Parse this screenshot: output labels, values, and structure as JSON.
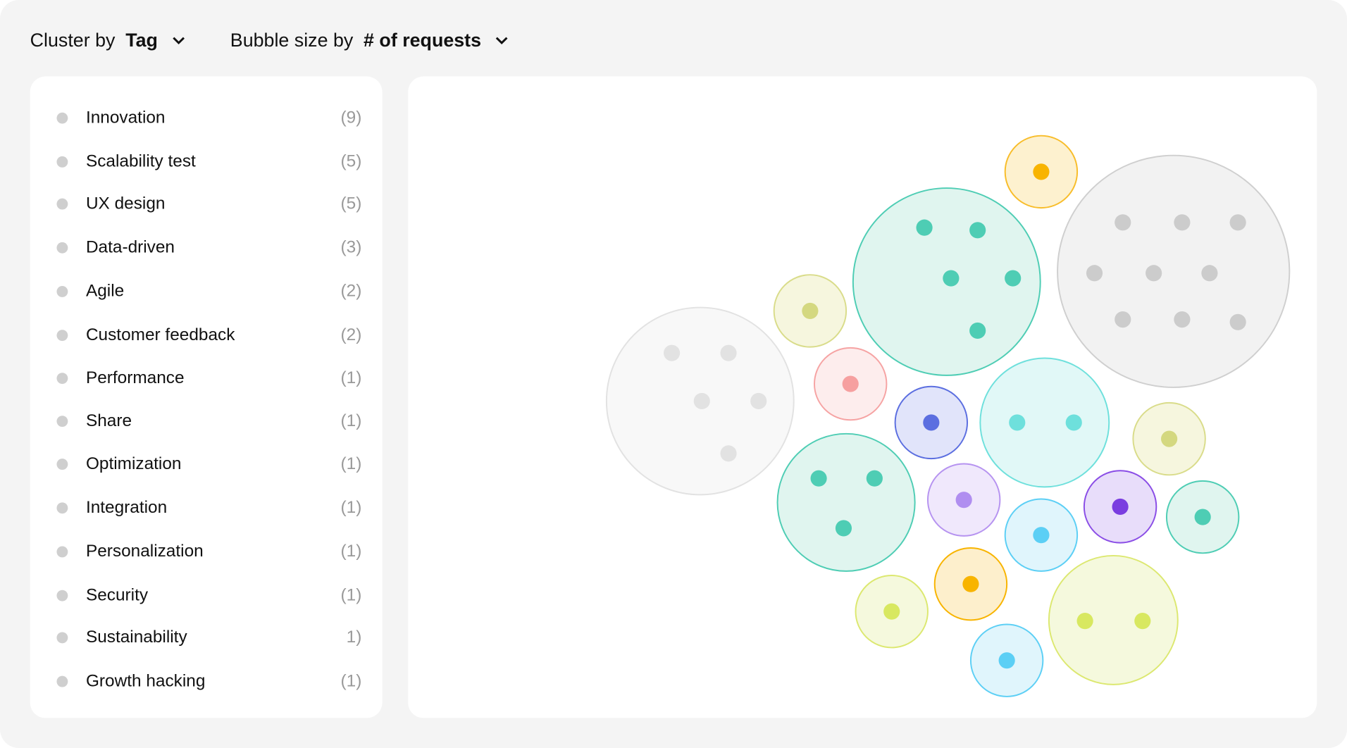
{
  "controls": {
    "cluster": {
      "prefix": "Cluster by ",
      "value": "Tag",
      "icon": "chevron-down-icon"
    },
    "bubble_size": {
      "prefix": "Bubble size by ",
      "value": "# of requests",
      "icon": "chevron-down-icon"
    }
  },
  "tags": [
    {
      "label": "Innovation",
      "count": "(9)"
    },
    {
      "label": "Scalability test",
      "count": "(5)"
    },
    {
      "label": "UX design",
      "count": "(5)"
    },
    {
      "label": "Data-driven",
      "count": "(3)"
    },
    {
      "label": "Agile",
      "count": "(2)"
    },
    {
      "label": "Customer feedback",
      "count": "(2)"
    },
    {
      "label": "Performance",
      "count": "(1)"
    },
    {
      "label": "Share",
      "count": "(1)"
    },
    {
      "label": "Optimization",
      "count": "(1)"
    },
    {
      "label": "Integration",
      "count": "(1)"
    },
    {
      "label": "Personalization",
      "count": "(1)"
    },
    {
      "label": "Security",
      "count": "(1)"
    },
    {
      "label": "Sustainability",
      "count": "1)"
    },
    {
      "label": "Growth hacking",
      "count": "(1)"
    }
  ],
  "chart_data": {
    "type": "bubble-cluster",
    "bubbles": [
      {
        "requests": 1,
        "stroke": "#f8bd2a",
        "fill": "#fdf1cf",
        "dot": "#f8b400"
      },
      {
        "requests": 9,
        "stroke": "#cfcfcf",
        "fill": "#f2f2f2",
        "dot": "#cccccc"
      },
      {
        "requests": 5,
        "stroke": "#4ecdb4",
        "fill": "#e0f5ef",
        "dot": "#4ecdb4"
      },
      {
        "requests": 1,
        "stroke": "#d9dc8a",
        "fill": "#f6f6de",
        "dot": "#d4d880"
      },
      {
        "requests": 5,
        "stroke": "#e2e2e2",
        "fill": "#f8f8f8",
        "dot": "#e2e2e2"
      },
      {
        "requests": 1,
        "stroke": "#f6a3a3",
        "fill": "#fdeded",
        "dot": "#f6a0a0"
      },
      {
        "requests": 1,
        "stroke": "#5b6ee0",
        "fill": "#e1e4fa",
        "dot": "#5b6ee0"
      },
      {
        "requests": 2,
        "stroke": "#6ee0dc",
        "fill": "#e1f8f7",
        "dot": "#6ee0dc"
      },
      {
        "requests": 1,
        "stroke": "#d9dc8a",
        "fill": "#f6f6de",
        "dot": "#d4d880"
      },
      {
        "requests": 3,
        "stroke": "#4ecdb4",
        "fill": "#e0f5ef",
        "dot": "#4ecdb4"
      },
      {
        "requests": 1,
        "stroke": "#b693f0",
        "fill": "#f0e8fc",
        "dot": "#b08ef0"
      },
      {
        "requests": 1,
        "stroke": "#5ccff5",
        "fill": "#e0f5fc",
        "dot": "#5ccff5"
      },
      {
        "requests": 1,
        "stroke": "#8a4de6",
        "fill": "#e8ddfa",
        "dot": "#7a3de0"
      },
      {
        "requests": 1,
        "stroke": "#4ecdb4",
        "fill": "#e0f5ef",
        "dot": "#4ecdb4"
      },
      {
        "requests": 1,
        "stroke": "#f8b400",
        "fill": "#fdefcc",
        "dot": "#f8b400"
      },
      {
        "requests": 1,
        "stroke": "#dce870",
        "fill": "#f5f9dd",
        "dot": "#d8e860"
      },
      {
        "requests": 2,
        "stroke": "#dce870",
        "fill": "#f5f9dd",
        "dot": "#d8e860"
      },
      {
        "requests": 1,
        "stroke": "#5ccff5",
        "fill": "#e0f5fc",
        "dot": "#5ccff5"
      }
    ]
  }
}
